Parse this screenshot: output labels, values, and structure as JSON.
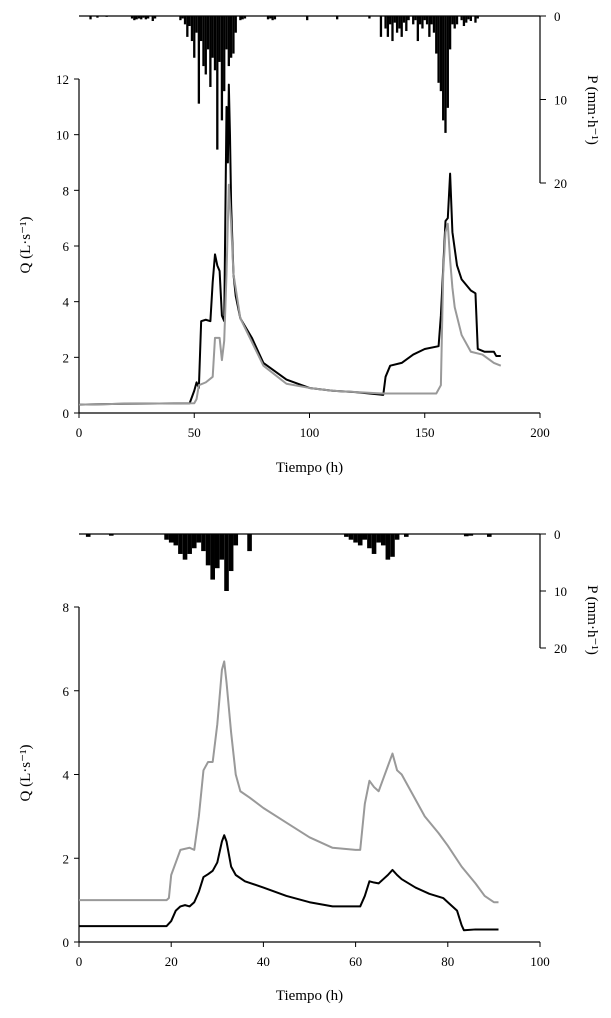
{
  "chart_data": [
    {
      "type": "line",
      "xlabel": "Tiempo (h)",
      "ylabel": "Q (L·s⁻¹)",
      "y2label": "P (mm·h⁻¹)",
      "xlim": [
        0,
        200
      ],
      "ylim": [
        0,
        12
      ],
      "y2lim": [
        0,
        20
      ],
      "x_ticks": [
        0,
        50,
        100,
        150,
        200
      ],
      "y_ticks": [
        0,
        2,
        4,
        6,
        8,
        10,
        12
      ],
      "y2_ticks": [
        0,
        10,
        20
      ],
      "grid": false,
      "series": [
        {
          "color": "#000000",
          "points": [
            [
              0,
              0.3
            ],
            [
              20,
              0.33
            ],
            [
              48,
              0.35
            ],
            [
              50,
              0.8
            ],
            [
              51,
              1.1
            ],
            [
              52,
              0.9
            ],
            [
              53,
              3.3
            ],
            [
              55,
              3.35
            ],
            [
              57,
              3.3
            ],
            [
              58,
              4.7
            ],
            [
              59,
              5.7
            ],
            [
              60,
              5.3
            ],
            [
              61,
              5.1
            ],
            [
              62,
              3.5
            ],
            [
              63,
              3.3
            ],
            [
              64,
              11.0
            ],
            [
              64.6,
              9.0
            ],
            [
              65,
              11.8
            ],
            [
              65.5,
              10.0
            ],
            [
              66,
              7.5
            ],
            [
              67,
              5.0
            ],
            [
              68,
              4.2
            ],
            [
              70,
              3.4
            ],
            [
              75,
              2.7
            ],
            [
              80,
              1.8
            ],
            [
              90,
              1.2
            ],
            [
              100,
              0.9
            ],
            [
              110,
              0.8
            ],
            [
              120,
              0.75
            ],
            [
              132,
              0.65
            ],
            [
              133,
              1.3
            ],
            [
              135,
              1.7
            ],
            [
              140,
              1.8
            ],
            [
              145,
              2.1
            ],
            [
              150,
              2.3
            ],
            [
              156,
              2.4
            ],
            [
              157,
              3.5
            ],
            [
              159,
              6.9
            ],
            [
              160,
              7.0
            ],
            [
              161,
              8.6
            ],
            [
              162,
              6.5
            ],
            [
              164,
              5.3
            ],
            [
              166,
              4.8
            ],
            [
              170,
              4.4
            ],
            [
              172,
              4.3
            ],
            [
              173,
              2.3
            ],
            [
              176,
              2.2
            ],
            [
              180,
              2.2
            ],
            [
              181,
              2.05
            ],
            [
              183,
              2.05
            ]
          ]
        },
        {
          "color": "#999999",
          "points": [
            [
              0,
              0.3
            ],
            [
              20,
              0.33
            ],
            [
              50,
              0.35
            ],
            [
              51,
              0.5
            ],
            [
              52,
              1.0
            ],
            [
              55,
              1.1
            ],
            [
              58,
              1.3
            ],
            [
              59,
              2.7
            ],
            [
              61,
              2.7
            ],
            [
              62,
              1.9
            ],
            [
              63,
              2.6
            ],
            [
              64,
              5.0
            ],
            [
              65,
              8.2
            ],
            [
              66,
              6.8
            ],
            [
              67,
              5.0
            ],
            [
              70,
              3.4
            ],
            [
              80,
              1.7
            ],
            [
              90,
              1.05
            ],
            [
              100,
              0.9
            ],
            [
              110,
              0.8
            ],
            [
              132,
              0.7
            ],
            [
              150,
              0.7
            ],
            [
              155,
              0.7
            ],
            [
              157,
              1.0
            ],
            [
              158,
              5.0
            ],
            [
              159,
              6.5
            ],
            [
              160,
              6.8
            ],
            [
              161,
              5.5
            ],
            [
              162,
              4.5
            ],
            [
              163,
              3.8
            ],
            [
              166,
              2.8
            ],
            [
              170,
              2.2
            ],
            [
              175,
              2.1
            ],
            [
              180,
              1.8
            ],
            [
              183,
              1.7
            ]
          ]
        }
      ],
      "rain": [
        [
          5,
          0.4
        ],
        [
          8,
          0.2
        ],
        [
          12,
          0.1
        ],
        [
          23,
          0.3
        ],
        [
          24,
          0.5
        ],
        [
          25,
          0.4
        ],
        [
          26,
          0.3
        ],
        [
          27,
          0.4
        ],
        [
          28,
          0.2
        ],
        [
          29,
          0.4
        ],
        [
          30,
          0.3
        ],
        [
          32,
          0.6
        ],
        [
          33,
          0.3
        ],
        [
          44,
          0.5
        ],
        [
          45,
          0.3
        ],
        [
          46,
          1.0
        ],
        [
          47,
          2.5
        ],
        [
          48,
          1.2
        ],
        [
          49,
          3.0
        ],
        [
          50,
          5.0
        ],
        [
          51,
          2.0
        ],
        [
          52,
          10.5
        ],
        [
          53,
          3.0
        ],
        [
          54,
          6.0
        ],
        [
          55,
          7.0
        ],
        [
          56,
          4.0
        ],
        [
          57,
          8.5
        ],
        [
          58,
          5.0
        ],
        [
          59,
          6.5
        ],
        [
          60,
          16.0
        ],
        [
          61,
          5.5
        ],
        [
          62,
          12.5
        ],
        [
          63,
          9.0
        ],
        [
          64,
          4.0
        ],
        [
          65,
          6.0
        ],
        [
          66,
          5.0
        ],
        [
          67,
          4.5
        ],
        [
          68,
          2.0
        ],
        [
          70,
          0.5
        ],
        [
          71,
          0.4
        ],
        [
          72,
          0.3
        ],
        [
          82,
          0.4
        ],
        [
          83,
          0.3
        ],
        [
          84,
          0.5
        ],
        [
          85,
          0.4
        ],
        [
          99,
          0.5
        ],
        [
          112,
          0.4
        ],
        [
          126,
          0.3
        ],
        [
          131,
          2.5
        ],
        [
          133,
          1.5
        ],
        [
          134,
          2.5
        ],
        [
          135,
          1.0
        ],
        [
          136,
          3.0
        ],
        [
          137,
          0.8
        ],
        [
          138,
          2.0
        ],
        [
          139,
          1.5
        ],
        [
          140,
          2.5
        ],
        [
          141,
          0.8
        ],
        [
          142,
          1.8
        ],
        [
          143,
          0.5
        ],
        [
          145,
          1.0
        ],
        [
          146,
          0.5
        ],
        [
          147,
          3.0
        ],
        [
          148,
          1.0
        ],
        [
          149,
          1.5
        ],
        [
          150,
          0.5
        ],
        [
          151,
          1.0
        ],
        [
          152,
          2.5
        ],
        [
          153,
          1.0
        ],
        [
          154,
          2.0
        ],
        [
          155,
          4.5
        ],
        [
          156,
          8.0
        ],
        [
          157,
          9.0
        ],
        [
          158,
          12.5
        ],
        [
          159,
          14.0
        ],
        [
          160,
          11.0
        ],
        [
          161,
          4.0
        ],
        [
          162,
          1.0
        ],
        [
          163,
          1.5
        ],
        [
          164,
          1.0
        ],
        [
          166,
          0.5
        ],
        [
          167,
          1.2
        ],
        [
          168,
          0.8
        ],
        [
          169,
          0.4
        ],
        [
          170,
          0.6
        ],
        [
          172,
          0.8
        ],
        [
          173,
          0.3
        ]
      ]
    },
    {
      "type": "line",
      "xlabel": "Tiempo (h)",
      "ylabel": "Q (L·s⁻¹)",
      "y2label": "P (mm·h⁻¹)",
      "xlim": [
        0,
        100
      ],
      "ylim": [
        0,
        8
      ],
      "y2lim": [
        0,
        20
      ],
      "x_ticks": [
        0,
        20,
        40,
        60,
        80,
        100
      ],
      "y_ticks": [
        0,
        2,
        4,
        6,
        8
      ],
      "y2_ticks": [
        0,
        10,
        20
      ],
      "grid": false,
      "series": [
        {
          "color": "#999999",
          "points": [
            [
              0,
              1.0
            ],
            [
              12,
              1.0
            ],
            [
              19,
              1.0
            ],
            [
              19.5,
              1.05
            ],
            [
              20,
              1.6
            ],
            [
              21,
              1.9
            ],
            [
              22,
              2.2
            ],
            [
              24,
              2.25
            ],
            [
              25,
              2.2
            ],
            [
              26,
              3.0
            ],
            [
              27,
              4.1
            ],
            [
              28,
              4.3
            ],
            [
              29,
              4.3
            ],
            [
              30,
              5.2
            ],
            [
              31,
              6.5
            ],
            [
              31.5,
              6.7
            ],
            [
              32,
              6.2
            ],
            [
              33,
              5.0
            ],
            [
              34,
              4.0
            ],
            [
              35,
              3.6
            ],
            [
              37,
              3.45
            ],
            [
              40,
              3.2
            ],
            [
              45,
              2.85
            ],
            [
              50,
              2.5
            ],
            [
              55,
              2.25
            ],
            [
              60,
              2.2
            ],
            [
              61,
              2.2
            ],
            [
              62,
              3.3
            ],
            [
              63,
              3.85
            ],
            [
              64,
              3.7
            ],
            [
              65,
              3.6
            ],
            [
              66,
              3.9
            ],
            [
              67,
              4.2
            ],
            [
              68,
              4.5
            ],
            [
              69,
              4.1
            ],
            [
              70,
              4.0
            ],
            [
              72,
              3.6
            ],
            [
              75,
              3.0
            ],
            [
              78,
              2.6
            ],
            [
              80,
              2.3
            ],
            [
              83,
              1.8
            ],
            [
              86,
              1.4
            ],
            [
              88,
              1.1
            ],
            [
              90,
              0.95
            ],
            [
              91,
              0.95
            ]
          ]
        },
        {
          "color": "#000000",
          "points": [
            [
              0,
              0.38
            ],
            [
              19,
              0.38
            ],
            [
              20,
              0.5
            ],
            [
              21,
              0.75
            ],
            [
              22,
              0.85
            ],
            [
              23,
              0.88
            ],
            [
              24,
              0.85
            ],
            [
              25,
              0.95
            ],
            [
              26,
              1.2
            ],
            [
              27,
              1.55
            ],
            [
              28,
              1.62
            ],
            [
              29,
              1.7
            ],
            [
              30,
              1.9
            ],
            [
              31,
              2.4
            ],
            [
              31.5,
              2.55
            ],
            [
              32,
              2.4
            ],
            [
              33,
              1.8
            ],
            [
              34,
              1.6
            ],
            [
              36,
              1.45
            ],
            [
              40,
              1.3
            ],
            [
              45,
              1.1
            ],
            [
              50,
              0.95
            ],
            [
              55,
              0.85
            ],
            [
              61,
              0.85
            ],
            [
              62,
              1.1
            ],
            [
              63,
              1.45
            ],
            [
              64,
              1.42
            ],
            [
              65,
              1.4
            ],
            [
              66,
              1.5
            ],
            [
              67,
              1.6
            ],
            [
              68,
              1.72
            ],
            [
              69,
              1.6
            ],
            [
              70,
              1.5
            ],
            [
              73,
              1.3
            ],
            [
              76,
              1.15
            ],
            [
              79,
              1.05
            ],
            [
              80,
              0.95
            ],
            [
              82,
              0.75
            ],
            [
              83,
              0.4
            ],
            [
              83.5,
              0.28
            ],
            [
              86,
              0.3
            ],
            [
              91,
              0.3
            ]
          ]
        }
      ],
      "rain": [
        [
          2,
          0.5
        ],
        [
          7,
          0.3
        ],
        [
          19,
          1.0
        ],
        [
          20,
          1.5
        ],
        [
          21,
          2.0
        ],
        [
          22,
          3.5
        ],
        [
          23,
          4.5
        ],
        [
          24,
          3.5
        ],
        [
          25,
          2.5
        ],
        [
          26,
          1.5
        ],
        [
          27,
          3.0
        ],
        [
          28,
          5.5
        ],
        [
          29,
          8.0
        ],
        [
          30,
          6.0
        ],
        [
          31,
          4.5
        ],
        [
          32,
          10.0
        ],
        [
          33,
          6.5
        ],
        [
          34,
          2.0
        ],
        [
          37,
          3.0
        ],
        [
          58,
          0.5
        ],
        [
          59,
          1.0
        ],
        [
          60,
          1.5
        ],
        [
          61,
          2.0
        ],
        [
          62,
          1.0
        ],
        [
          63,
          2.5
        ],
        [
          64,
          3.5
        ],
        [
          65,
          1.5
        ],
        [
          66,
          2.0
        ],
        [
          67,
          4.5
        ],
        [
          68,
          4.0
        ],
        [
          69,
          1.0
        ],
        [
          71,
          0.5
        ],
        [
          84,
          0.4
        ],
        [
          85,
          0.3
        ],
        [
          89,
          0.5
        ]
      ]
    }
  ]
}
